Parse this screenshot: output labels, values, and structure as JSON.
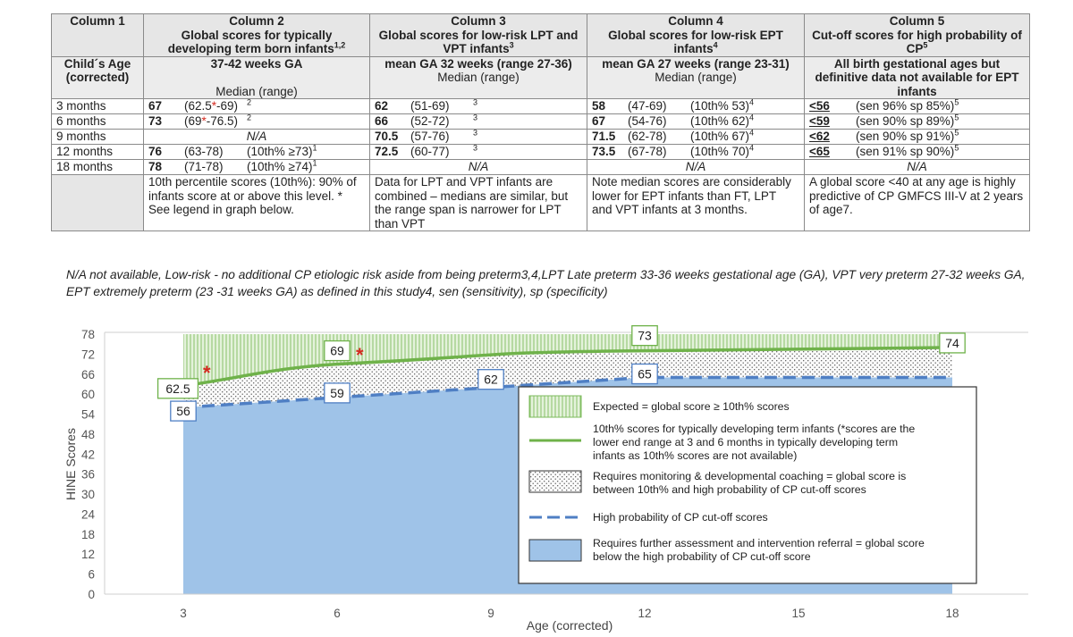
{
  "table": {
    "columns": [
      {
        "name": "Column 1",
        "title": ""
      },
      {
        "name": "Column 2",
        "title": "Global scores for typically developing term born infants",
        "sup": "1,2"
      },
      {
        "name": "Column 3",
        "title": "Global scores for low-risk LPT and VPT infants",
        "sup": "3"
      },
      {
        "name": "Column 4",
        "title": "Global scores for low-risk EPT infants",
        "sup": "4"
      },
      {
        "name": "Column 5",
        "title": "Cut-off scores for high probability of CP",
        "sup": "5"
      }
    ],
    "subheader": {
      "c1": "Child´s Age (corrected)",
      "c2_bold": "37-42 weeks GA",
      "c2_norm": "Median (range)",
      "c3_bold": "mean GA 32 weeks (range 27-36)",
      "c3_norm": "Median (range)",
      "c4_bold": "mean GA 27 weeks (range 23-31)",
      "c4_norm": "Median (range)",
      "c5_bold": "All birth gestational ages but definitive data not available for EPT infants"
    },
    "rows": [
      {
        "age": "3 months",
        "c2": {
          "median": "67",
          "range": "(62.5*-69)",
          "sup": "2"
        },
        "c3": {
          "median": "62",
          "range": "(51-69)",
          "sup": "3"
        },
        "c4": {
          "median": "58",
          "range": "(47-69)",
          "p10": "(10th% 53)",
          "sup": "4"
        },
        "c5": {
          "cut": "<56",
          "text": "(sen 96% sp 85%)",
          "sup": "5"
        }
      },
      {
        "age": "6 months",
        "c2": {
          "median": "73",
          "range": "(69*-76.5)",
          "sup": "2"
        },
        "c3": {
          "median": "66",
          "range": "(52-72)",
          "sup": "3"
        },
        "c4": {
          "median": "67",
          "range": "(54-76)",
          "p10": "(10th% 62)",
          "sup": "4"
        },
        "c5": {
          "cut": "<59",
          "text": "(sen 90% sp 89%)",
          "sup": "5"
        }
      },
      {
        "age": "9 months",
        "c2": {
          "na": "N/A"
        },
        "c3": {
          "median": "70.5",
          "range": "(57-76)",
          "sup": "3"
        },
        "c4": {
          "median": "71.5",
          "range": "(62-78)",
          "p10": "(10th% 67)",
          "sup": "4"
        },
        "c5": {
          "cut": "<62",
          "text": "(sen 90% sp 91%)",
          "sup": "5"
        }
      },
      {
        "age": "12 months",
        "c2": {
          "median": "76",
          "range": "(63-78)",
          "p10": "(10th% ≥73)",
          "sup": "1"
        },
        "c3": {
          "median": "72.5",
          "range": "(60-77)",
          "sup": "3"
        },
        "c4": {
          "median": "73.5",
          "range": "(67-78)",
          "p10": "(10th% 70)",
          "sup": "4"
        },
        "c5": {
          "cut": "<65",
          "text": "(sen 91% sp 90%)",
          "sup": "5"
        }
      },
      {
        "age": "18 months",
        "c2": {
          "median": "78",
          "range": "(71-78)",
          "p10": "(10th% ≥74)",
          "sup": "1"
        },
        "c3": {
          "na": "N/A"
        },
        "c4": {
          "na": "N/A"
        },
        "c5": {
          "na": "N/A"
        }
      }
    ],
    "notes": {
      "c2": "10th percentile scores (10th%): 90% of infants score at or above this level. * See legend in graph below.",
      "c3": "Data for LPT and VPT infants are combined – medians are similar, but the range span is narrower for LPT than VPT",
      "c4": "Note median scores are considerably lower for EPT infants than FT, LPT and VPT infants at 3 months.",
      "c5": "A global score <40 at any age is highly predictive of CP GMFCS III-V at 2 years of age7."
    }
  },
  "footnote": "N/A not available, Low-risk - no additional CP etiologic risk aside from being preterm3,4,LPT Late preterm 33-36 weeks gestational age (GA), VPT very preterm 27-32 weeks GA, EPT extremely preterm (23 -31 weeks GA) as defined in this study4,  sen (sensitivity), sp (specificity)",
  "chart_data": {
    "type": "area",
    "xlabel": "Age (corrected)",
    "ylabel": "HINE Scores",
    "ylim": [
      0,
      78
    ],
    "xlim": [
      3,
      18
    ],
    "xticks": [
      3,
      6,
      9,
      12,
      15,
      18
    ],
    "yticks": [
      0,
      6,
      12,
      18,
      24,
      30,
      36,
      42,
      48,
      54,
      60,
      66,
      72,
      78
    ],
    "grid": false,
    "legend_position": "right",
    "series": [
      {
        "name": "10th% scores for typically developing term infants (*scores are the lower end range at 3 and 6 months in typically developing term infants as 10th% scores are not available)",
        "style": "solid-green",
        "x": [
          3,
          6,
          12,
          18
        ],
        "y": [
          62.5,
          69,
          73,
          74
        ],
        "point_labels": [
          "62.5",
          "69",
          "73",
          "74"
        ]
      },
      {
        "name": "High probability of CP cut-off scores",
        "style": "dashed-blue",
        "x": [
          3,
          6,
          9,
          12,
          18
        ],
        "y": [
          56,
          59,
          62,
          65,
          65
        ],
        "point_labels": [
          "56",
          "59",
          "62",
          "65",
          ""
        ]
      }
    ],
    "legend": [
      {
        "key": "expected",
        "text": "Expected = global score ≥ 10th% scores"
      },
      {
        "key": "green-line",
        "text": "10th% scores for typically developing term infants (*scores are the lower end range at 3 and 6 months in typically developing term infants as 10th% scores are not available)"
      },
      {
        "key": "dots",
        "text": "Requires monitoring & developmental coaching = global score is between 10th% and high probability of CP cut-off scores"
      },
      {
        "key": "dashed-line",
        "text": "High probability of CP cut-off scores"
      },
      {
        "key": "blue-area",
        "text": "Requires further assessment and intervention referral = global score below the high probability of CP cut-off score"
      }
    ],
    "colors": {
      "green": "#6fb24a",
      "green_fill": "#dcefd0",
      "blue": "#4f7fc4",
      "blue_fill": "#9fc3e8",
      "star": "#d42a20"
    }
  }
}
